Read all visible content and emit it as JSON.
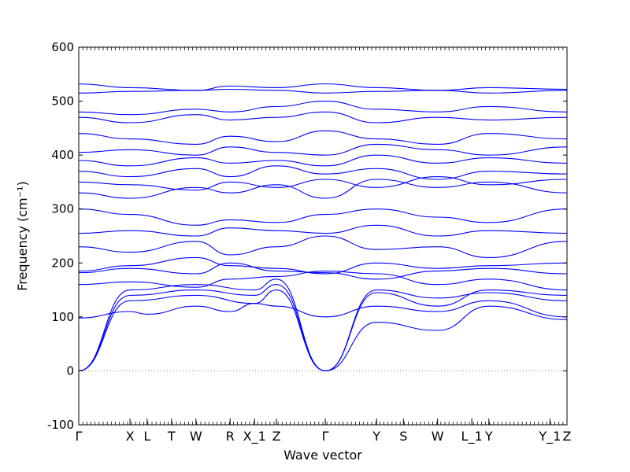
{
  "chart_data": {
    "type": "line",
    "title": "",
    "xlabel": "Wave vector",
    "ylabel": "Frequency (cm⁻¹)",
    "ylim": [
      -100,
      600
    ],
    "yticks": [
      -100,
      0,
      100,
      200,
      300,
      400,
      500,
      600
    ],
    "grid": false,
    "legend": "none",
    "line_color": "#0000ff",
    "zero_line_color": "#777777",
    "k_points": [
      "Γ",
      "X",
      "L",
      "T",
      "W",
      "R",
      "X_1",
      "Z",
      "Γ",
      "Y",
      "S",
      "W",
      "L_1",
      "Y",
      "Y_1",
      "Z"
    ],
    "k_positions": [
      0.0,
      1.05,
      1.4,
      1.9,
      2.4,
      3.1,
      3.6,
      4.05,
      5.05,
      6.1,
      6.65,
      7.35,
      8.05,
      8.4,
      9.65,
      10.0
    ],
    "bands": [
      {
        "name": "",
        "x": [
          0,
          1.05,
          2.4,
          3.6,
          4.05,
          5.05,
          6.1,
          7.35,
          8.4,
          10.0
        ],
        "y": [
          0,
          130,
          140,
          125,
          150,
          0,
          150,
          135,
          145,
          130
        ]
      },
      {
        "name": "",
        "x": [
          0,
          1.05,
          2.4,
          3.6,
          4.05,
          5.05,
          6.1,
          7.35,
          8.4,
          10.0
        ],
        "y": [
          0,
          140,
          150,
          140,
          160,
          0,
          90,
          75,
          120,
          95
        ]
      },
      {
        "name": "",
        "x": [
          0,
          1.05,
          2.4,
          3.6,
          4.05,
          5.05,
          6.1,
          7.35,
          8.4,
          10.0
        ],
        "y": [
          0,
          150,
          160,
          150,
          170,
          0,
          145,
          120,
          150,
          140
        ]
      },
      {
        "name": "",
        "x": [
          0,
          1.05,
          1.4,
          2.4,
          3.1,
          3.6,
          4.05,
          5.05,
          6.1,
          7.35,
          8.4,
          10.0
        ],
        "y": [
          98,
          110,
          105,
          120,
          110,
          125,
          120,
          100,
          120,
          110,
          130,
          100
        ]
      },
      {
        "name": "",
        "x": [
          0,
          1.05,
          2.4,
          3.1,
          4.05,
          5.05,
          6.1,
          7.35,
          8.4,
          10.0
        ],
        "y": [
          160,
          165,
          155,
          170,
          175,
          185,
          180,
          160,
          170,
          150
        ]
      },
      {
        "name": "",
        "x": [
          0,
          1.05,
          2.4,
          3.1,
          4.05,
          5.05,
          6.1,
          7.35,
          8.4,
          10.0
        ],
        "y": [
          182,
          190,
          180,
          200,
          185,
          182,
          170,
          185,
          190,
          180
        ]
      },
      {
        "name": "",
        "x": [
          0,
          1.05,
          2.4,
          3.1,
          4.05,
          5.05,
          6.1,
          7.35,
          8.4,
          10.0
        ],
        "y": [
          185,
          195,
          210,
          195,
          190,
          180,
          200,
          190,
          195,
          200
        ]
      },
      {
        "name": "",
        "x": [
          0,
          1.05,
          2.4,
          3.1,
          4.05,
          5.05,
          6.1,
          7.35,
          8.4,
          10.0
        ],
        "y": [
          230,
          220,
          240,
          215,
          230,
          250,
          225,
          230,
          210,
          240
        ]
      },
      {
        "name": "",
        "x": [
          0,
          1.05,
          2.4,
          3.1,
          4.05,
          5.05,
          6.1,
          7.35,
          8.4,
          10.0
        ],
        "y": [
          255,
          260,
          250,
          265,
          260,
          255,
          270,
          250,
          260,
          255
        ]
      },
      {
        "name": "",
        "x": [
          0,
          1.05,
          2.4,
          3.1,
          4.05,
          5.05,
          6.1,
          7.35,
          8.4,
          10.0
        ],
        "y": [
          300,
          290,
          270,
          280,
          275,
          290,
          300,
          285,
          275,
          300
        ]
      },
      {
        "name": "",
        "x": [
          0,
          1.05,
          2.4,
          3.1,
          4.05,
          5.05,
          6.1,
          7.35,
          8.4,
          10.0
        ],
        "y": [
          330,
          320,
          340,
          330,
          345,
          320,
          355,
          340,
          350,
          330
        ]
      },
      {
        "name": "",
        "x": [
          0,
          1.05,
          2.4,
          3.1,
          4.05,
          5.05,
          6.1,
          7.35,
          8.4,
          10.0
        ],
        "y": [
          350,
          345,
          335,
          350,
          340,
          355,
          340,
          360,
          345,
          355
        ]
      },
      {
        "name": "",
        "x": [
          0,
          1.05,
          2.4,
          3.1,
          4.05,
          5.05,
          6.1,
          7.35,
          8.4,
          10.0
        ],
        "y": [
          370,
          360,
          375,
          360,
          380,
          365,
          375,
          355,
          370,
          365
        ]
      },
      {
        "name": "",
        "x": [
          0,
          1.05,
          2.4,
          3.1,
          4.05,
          5.05,
          6.1,
          7.35,
          8.4,
          10.0
        ],
        "y": [
          390,
          380,
          395,
          385,
          390,
          380,
          400,
          385,
          395,
          385
        ]
      },
      {
        "name": "",
        "x": [
          0,
          1.05,
          2.4,
          3.1,
          4.05,
          5.05,
          6.1,
          7.35,
          8.4,
          10.0
        ],
        "y": [
          405,
          410,
          400,
          415,
          405,
          400,
          420,
          410,
          400,
          415
        ]
      },
      {
        "name": "",
        "x": [
          0,
          1.05,
          2.4,
          3.1,
          4.05,
          5.05,
          6.1,
          7.35,
          8.4,
          10.0
        ],
        "y": [
          440,
          430,
          420,
          435,
          425,
          445,
          430,
          420,
          440,
          430
        ]
      },
      {
        "name": "",
        "x": [
          0,
          1.05,
          2.4,
          3.1,
          4.05,
          5.05,
          6.1,
          7.35,
          8.4,
          10.0
        ],
        "y": [
          470,
          460,
          475,
          465,
          470,
          480,
          460,
          470,
          465,
          470
        ]
      },
      {
        "name": "",
        "x": [
          0,
          1.05,
          2.4,
          3.1,
          4.05,
          5.05,
          6.1,
          7.35,
          8.4,
          10.0
        ],
        "y": [
          480,
          475,
          485,
          480,
          490,
          500,
          485,
          480,
          490,
          480
        ]
      },
      {
        "name": "",
        "x": [
          0,
          1.05,
          2.4,
          3.1,
          4.05,
          5.05,
          6.1,
          7.35,
          8.4,
          10.0
        ],
        "y": [
          515,
          518,
          520,
          522,
          520,
          515,
          518,
          520,
          515,
          520
        ]
      },
      {
        "name": "",
        "x": [
          0,
          1.05,
          2.4,
          3.1,
          4.05,
          5.05,
          6.1,
          7.35,
          8.4,
          10.0
        ],
        "y": [
          532,
          525,
          520,
          528,
          525,
          532,
          525,
          520,
          525,
          522
        ]
      }
    ]
  }
}
